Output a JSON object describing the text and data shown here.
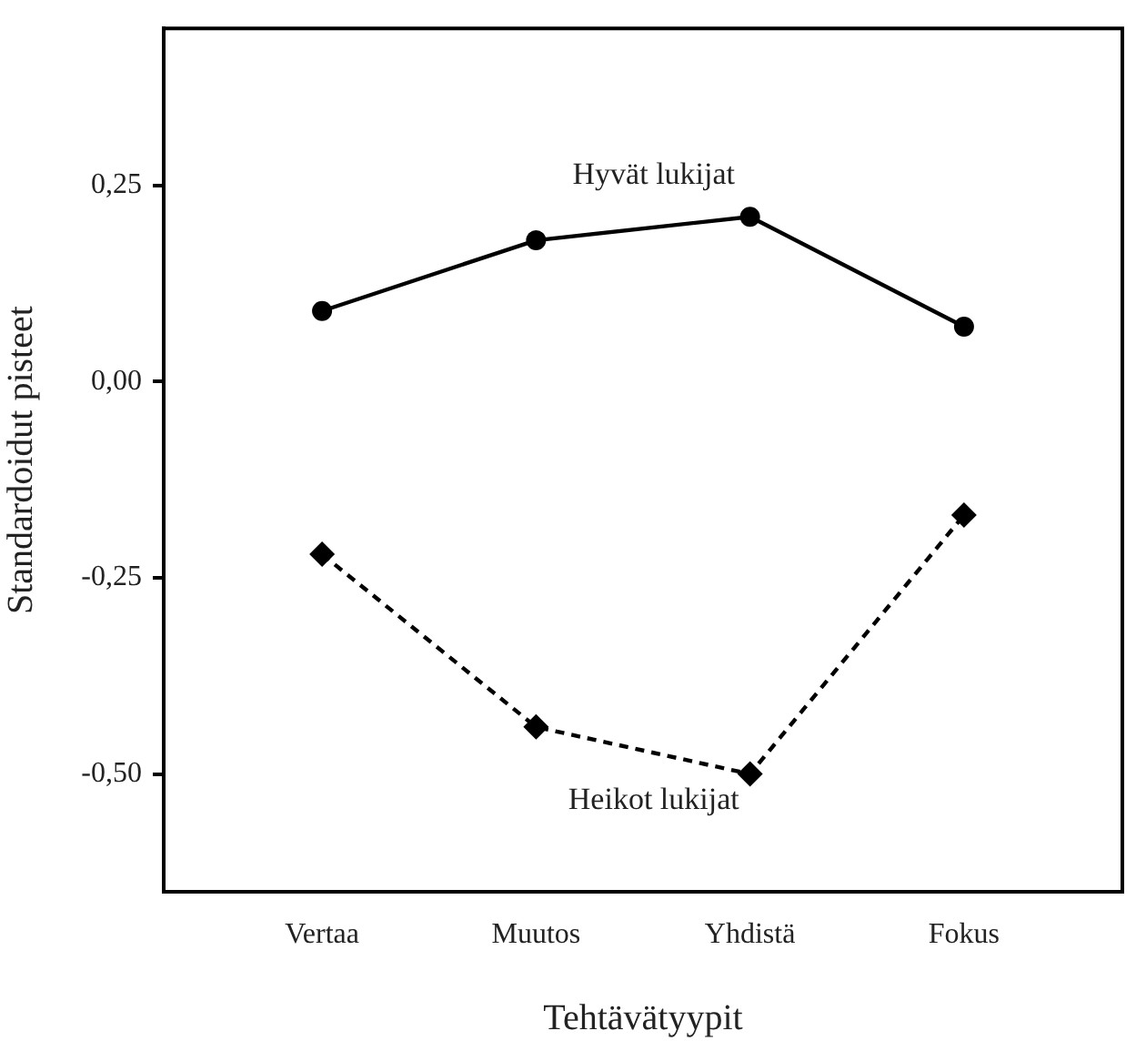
{
  "chart_data": {
    "type": "line",
    "xlabel": "Tehtävätyypit",
    "ylabel": "Standardoidut pisteet",
    "categories": [
      "Vertaa",
      "Muutos",
      "Yhdistä",
      "Fokus"
    ],
    "series": [
      {
        "name": "Hyvät lukijat",
        "color": "#000000",
        "marker": "circle",
        "line_style": "solid",
        "values": [
          0.09,
          0.18,
          0.21,
          0.07
        ]
      },
      {
        "name": "Heikot lukijat",
        "color": "#000000",
        "marker": "diamond",
        "line_style": "dashed",
        "values": [
          -0.22,
          -0.44,
          -0.5,
          -0.17
        ]
      }
    ],
    "ylim": [
      -0.65,
      0.45
    ],
    "yticks": [
      {
        "value": -0.5,
        "label": "-0,50"
      },
      {
        "value": -0.25,
        "label": "-0,25"
      },
      {
        "value": 0,
        "label": "0,00"
      },
      {
        "value": 0.25,
        "label": "0,25"
      }
    ],
    "grid": false,
    "legend": false
  }
}
